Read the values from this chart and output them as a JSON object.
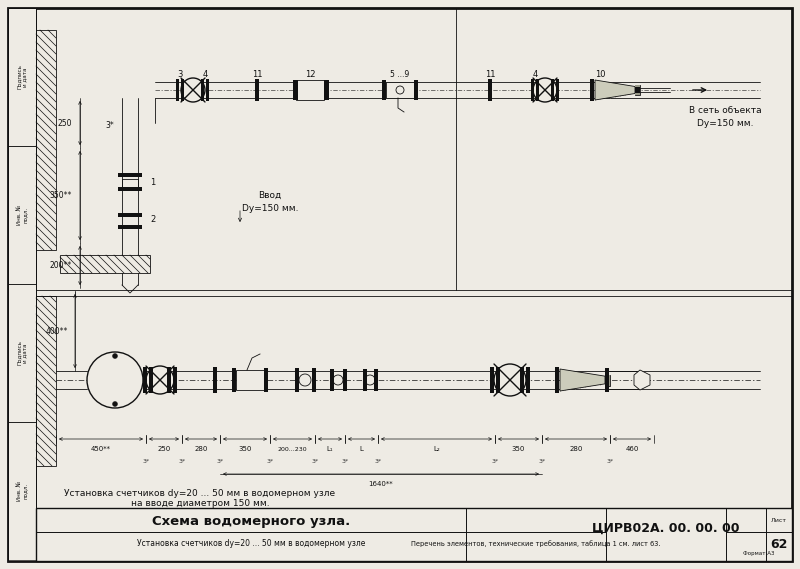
{
  "bg_color": "#eeebe4",
  "line_color": "#111111",
  "title_main": "Схема водомерного узла.",
  "title_code": "ЦИРВ02А. 00. 00. 00",
  "sheet_num": "62",
  "note1": "Установка счетчиков dy=20 ... 50 мм в водомерном узле",
  "note2": "на вводе диаметром 150 мм.",
  "note3": "Перечень элементов, технические требования, таблица 1 см. лист 63.",
  "arrow_label1": "В сеть объекта",
  "arrow_label2": "Dy=150 мм.",
  "input_label1": "Ввод",
  "input_label2": "Dy=150 мм.",
  "dim_250": "250",
  "dim_350s": "350**",
  "dim_200s": "200**",
  "dim_400s": "400**",
  "dim_1640s": "1640**",
  "format_label": "Формат А3",
  "item1": "1",
  "item2": "2",
  "item3": "3",
  "item4": "4",
  "item10": "10",
  "item11": "11",
  "item12": "12",
  "item59": "5 ...9",
  "item3s": "3*"
}
